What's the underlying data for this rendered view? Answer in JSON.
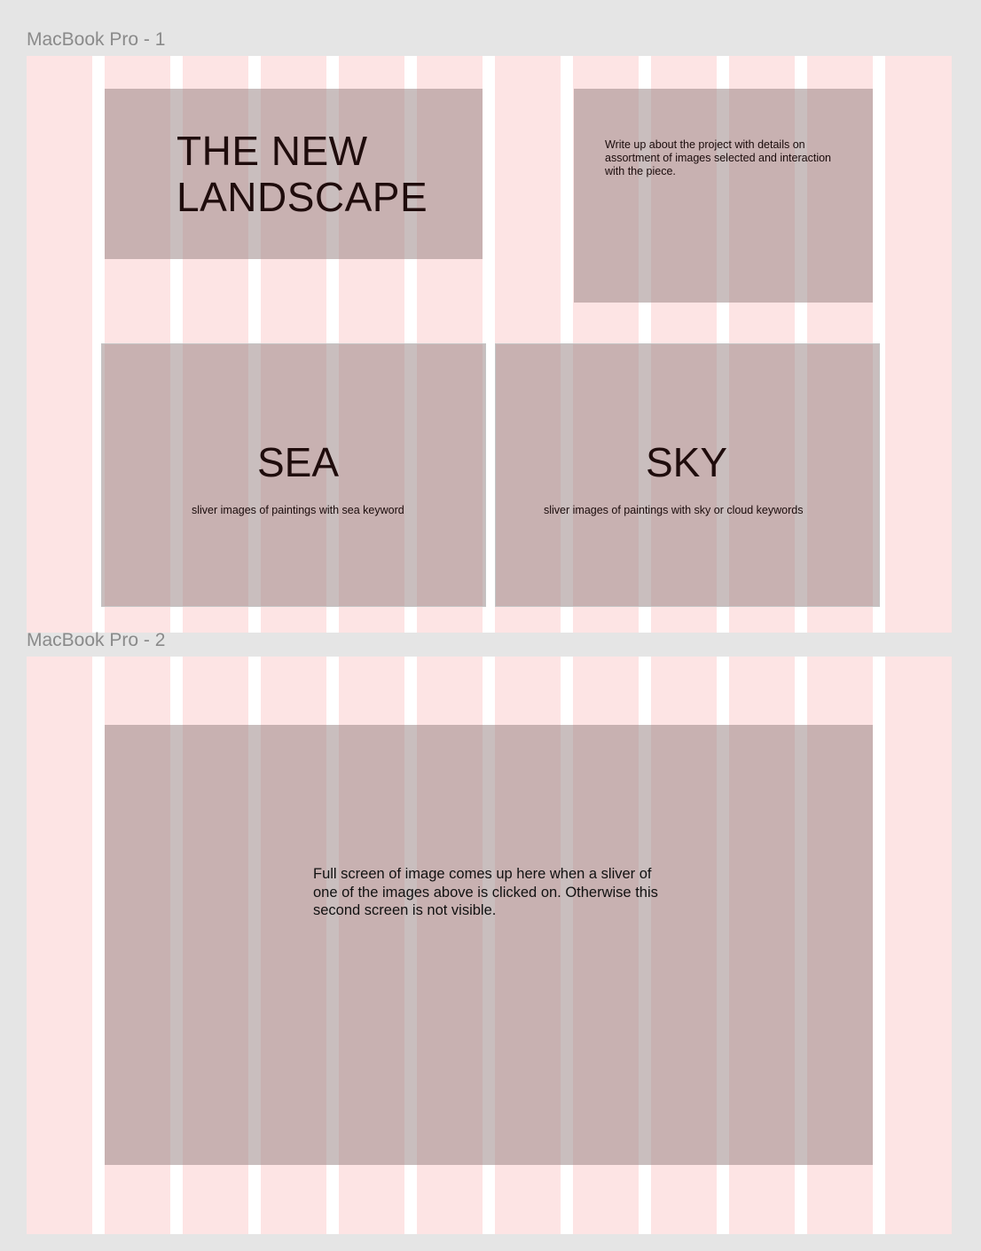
{
  "frames": [
    {
      "label": "MacBook Pro - 1"
    },
    {
      "label": "MacBook Pro - 2"
    }
  ],
  "screen1": {
    "title_line1": "THE NEW",
    "title_line2": "LANDSCAPE",
    "writeup": "Write up about the project with details on assortment of images selected and interaction with the piece.",
    "sea": {
      "heading": "SEA",
      "caption": "sliver images of paintings with sea  keyword"
    },
    "sky": {
      "heading": "SKY",
      "caption": "sliver images of paintings with sky or cloud  keywords"
    }
  },
  "screen2": {
    "fullscreen_text": "Full screen of image comes up here when a sliver of one of the images above is clicked on. Otherwise this second screen is not visible."
  }
}
